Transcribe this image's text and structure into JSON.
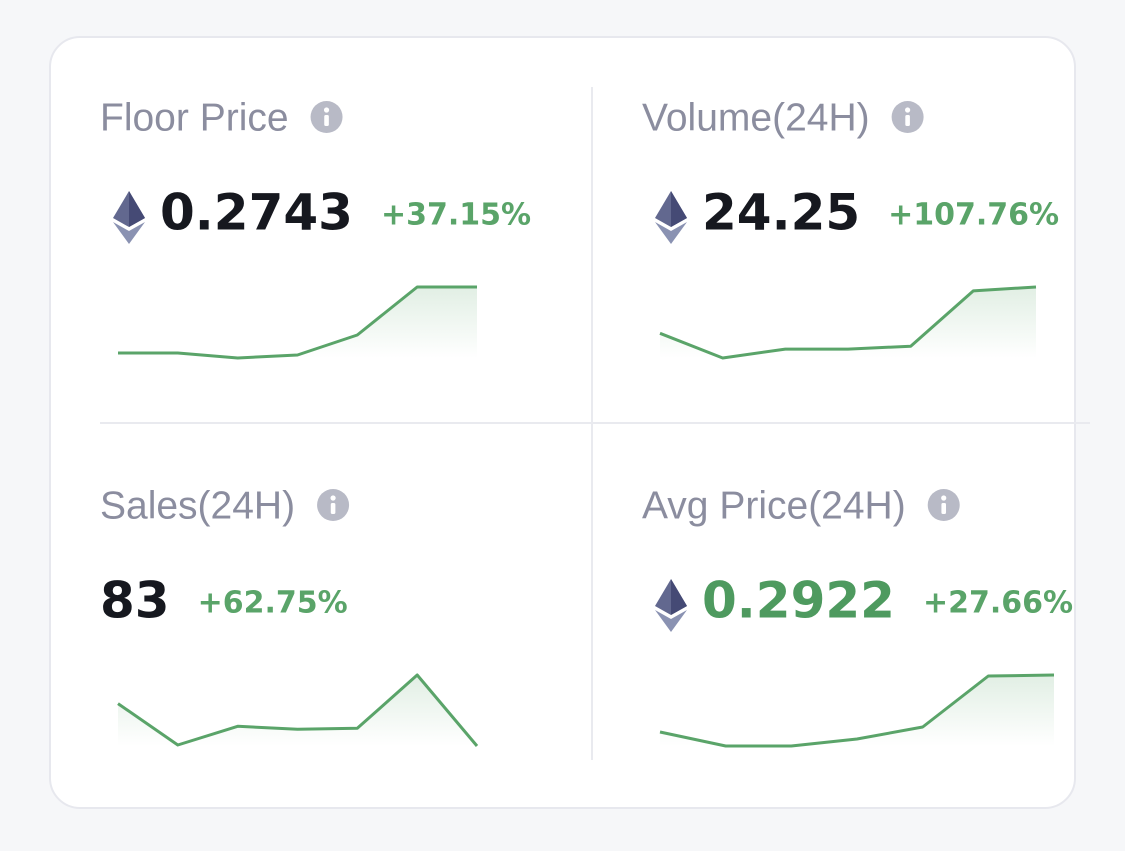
{
  "cards": [
    {
      "label": "Floor Price",
      "value": "0.2743",
      "change": "+37.15%",
      "eth": true,
      "value_color": "#16181f",
      "trend": [
        7,
        7,
        2,
        5,
        25,
        73,
        73
      ]
    },
    {
      "label": "Volume(24H)",
      "value": "24.25",
      "change": "+107.76%",
      "eth": true,
      "value_color": "#16181f",
      "trend": [
        27,
        2,
        11,
        11,
        14,
        70,
        74
      ]
    },
    {
      "label": "Sales(24H)",
      "value": "83",
      "change": "+62.75%",
      "eth": false,
      "value_color": "#16181f",
      "trend": [
        47,
        5,
        24,
        21,
        22,
        76,
        4
      ]
    },
    {
      "label": "Avg Price(24H)",
      "value": "0.2922",
      "change": "+27.66%",
      "eth": true,
      "value_color": "#4e9a5f",
      "trend": [
        19,
        5,
        5,
        12,
        24,
        75,
        76
      ]
    }
  ]
}
